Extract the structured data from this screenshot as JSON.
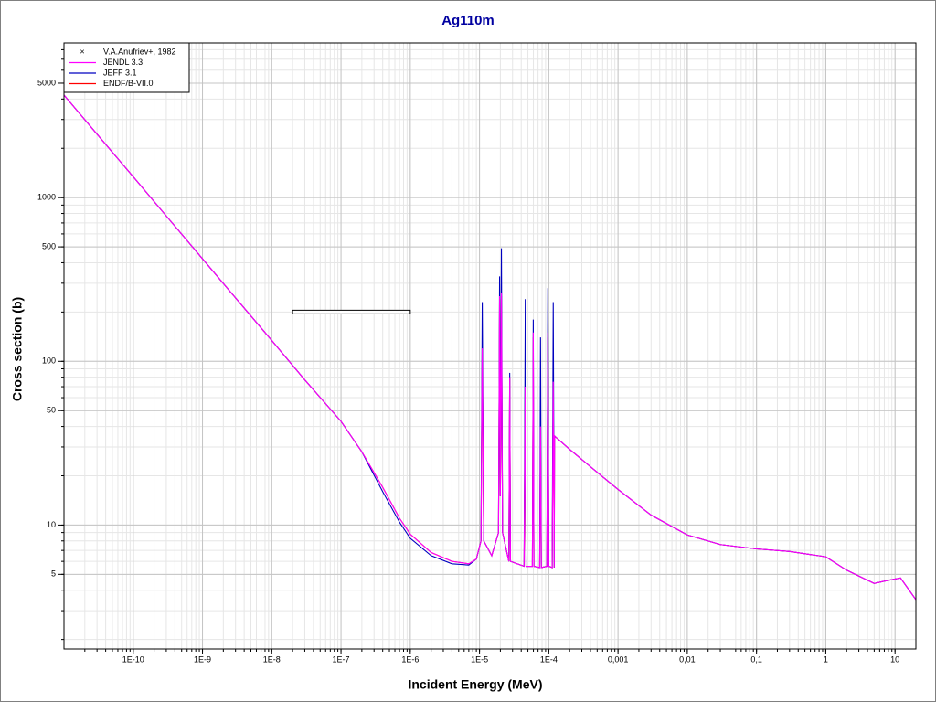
{
  "chart_data": {
    "type": "line",
    "title": "Ag110m",
    "x_label": "Incident Energy (MeV)",
    "y_label": "Cross section (b)",
    "log_x": true,
    "log_y": true,
    "grid": true,
    "minor_grid": true,
    "legend_position": "upper left",
    "xlim": [
      1e-11,
      20
    ],
    "ylim": [
      1.75,
      8800
    ],
    "xticks": [
      {
        "value": 1e-10,
        "label": "1E-10"
      },
      {
        "value": 1e-09,
        "label": "1E-9"
      },
      {
        "value": 1e-08,
        "label": "1E-8"
      },
      {
        "value": 1e-07,
        "label": "1E-7"
      },
      {
        "value": 1e-06,
        "label": "1E-6"
      },
      {
        "value": 1e-05,
        "label": "1E-5"
      },
      {
        "value": 0.0001,
        "label": "1E-4"
      },
      {
        "value": 0.001,
        "label": "0,001"
      },
      {
        "value": 0.01,
        "label": "0,01"
      },
      {
        "value": 0.1,
        "label": "0,1"
      },
      1,
      10
    ],
    "yticks": [
      5,
      10,
      50,
      100,
      500,
      1000,
      5000
    ],
    "experiment": {
      "name": "V.A.Anufriev+, 1982",
      "color": "#000000",
      "x_range": [
        2e-08,
        1e-06
      ],
      "value": 200
    },
    "x": [
      1e-11,
      3e-11,
      1e-10,
      3e-10,
      1e-09,
      3e-09,
      1e-08,
      3e-08,
      1e-07,
      2e-07,
      4e-07,
      7e-07,
      1e-06,
      2e-06,
      4e-06,
      7e-06,
      9e-06,
      1.05e-05,
      1.095e-05,
      1.15e-05,
      1.5e-05,
      1.88e-05,
      1.95e-05,
      2e-05,
      2.07e-05,
      2.15e-05,
      2.65e-05,
      2.73e-05,
      2.8e-05,
      4.4e-05,
      4.58e-05,
      4.7e-05,
      5.8e-05,
      5.97e-05,
      6.1e-05,
      7.4e-05,
      7.6e-05,
      7.8e-05,
      9.4e-05,
      9.7e-05,
      0.0001,
      0.000112,
      0.000116,
      0.00012,
      0.000121,
      0.0002,
      0.0005,
      0.001,
      0.003,
      0.01,
      0.03,
      0.1,
      0.3,
      1,
      2,
      5,
      8,
      12,
      20
    ],
    "series": [
      {
        "name": "JENDL 3.3",
        "color": "#ff00ff",
        "values": [
          4230,
          2440,
          1340,
          772,
          423,
          244,
          134,
          77,
          43,
          28,
          17,
          11,
          8.8,
          6.8,
          6.0,
          5.8,
          6.2,
          8,
          120,
          8,
          6.5,
          9,
          250,
          15,
          260,
          9,
          6,
          80,
          6,
          5.6,
          70,
          5.6,
          5.6,
          150,
          5.6,
          5.5,
          40,
          5.5,
          5.6,
          150,
          5.6,
          5.5,
          75,
          5.5,
          35,
          29,
          21,
          16.5,
          11.5,
          8.7,
          7.6,
          7.15,
          6.9,
          6.4,
          5.3,
          4.4,
          4.6,
          4.75,
          3.5
        ]
      },
      {
        "name": "JEFF 3.1",
        "color": "#0000c0",
        "values": [
          4230,
          2440,
          1340,
          772,
          423,
          244,
          134,
          77,
          43,
          28,
          16,
          10.4,
          8.3,
          6.5,
          5.8,
          5.7,
          6.2,
          8,
          230,
          8,
          6.5,
          9,
          330,
          15,
          490,
          9,
          6,
          85,
          6,
          5.6,
          240,
          5.6,
          5.6,
          180,
          5.6,
          5.5,
          140,
          5.5,
          5.6,
          280,
          5.6,
          5.5,
          230,
          5.5,
          35,
          29,
          21,
          16.5,
          11.5,
          8.7,
          7.6,
          7.15,
          6.9,
          6.4,
          5.3,
          4.4,
          4.6,
          4.75,
          3.5
        ]
      },
      {
        "name": "ENDF/B-VII.0",
        "color": "#ff0000",
        "values": [
          4230,
          2440,
          1340,
          772,
          423,
          244,
          134,
          77,
          43,
          28,
          17,
          11,
          8.8,
          6.8,
          6.0,
          5.8,
          6.2,
          8,
          110,
          8,
          6.5,
          9,
          240,
          15,
          250,
          9,
          6,
          80,
          6,
          5.6,
          65,
          5.6,
          5.6,
          140,
          5.6,
          5.5,
          40,
          5.5,
          5.6,
          140,
          5.6,
          5.5,
          70,
          5.5,
          35,
          29,
          21,
          16.5,
          11.5,
          8.7,
          7.6,
          7.15,
          6.9,
          6.4,
          5.3,
          4.4,
          4.6,
          4.75,
          3.5
        ]
      }
    ]
  }
}
